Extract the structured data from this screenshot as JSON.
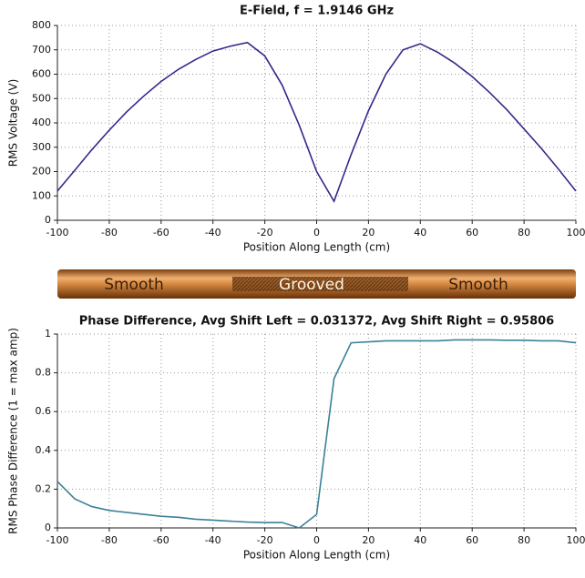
{
  "chart_data": [
    {
      "type": "line",
      "title": "E-Field, f = 1.9146 GHz",
      "xlabel": "Position Along Length (cm)",
      "ylabel": "RMS Voltage (V)",
      "x": [
        -100,
        -93.3,
        -86.7,
        -80,
        -73.3,
        -66.7,
        -60,
        -53.3,
        -46.7,
        -40,
        -33.3,
        -26.7,
        -20,
        -13.3,
        -6.7,
        0,
        6.7,
        13.3,
        20,
        26.7,
        33.3,
        40,
        46.7,
        53.3,
        60,
        66.7,
        73.3,
        80,
        86.7,
        93.3,
        100
      ],
      "series": [
        {
          "color": "#35288a",
          "values": [
            120,
            205,
            290,
            370,
            445,
            510,
            570,
            620,
            660,
            695,
            715,
            730,
            675,
            555,
            390,
            200,
            78,
            270,
            450,
            600,
            700,
            725,
            690,
            645,
            590,
            525,
            455,
            375,
            295,
            210,
            120
          ]
        }
      ],
      "xlim": [
        -100,
        100
      ],
      "xticks": [
        -100,
        -80,
        -60,
        -40,
        -20,
        0,
        20,
        40,
        60,
        80,
        100
      ],
      "ylim": [
        0,
        800
      ],
      "yticks": [
        0,
        100,
        200,
        300,
        400,
        500,
        600,
        700,
        800
      ],
      "grid": true
    },
    {
      "type": "line",
      "title": "Phase Difference, Avg Shift Left = 0.031372, Avg Shift Right = 0.95806",
      "xlabel": "Position Along Length (cm)",
      "ylabel": "RMS Phase Difference (1 = max amp)",
      "x": [
        -100,
        -93.3,
        -86.7,
        -80,
        -73.3,
        -66.7,
        -60,
        -53.3,
        -46.7,
        -40,
        -33.3,
        -26.7,
        -20,
        -13.3,
        -6.7,
        0,
        6.7,
        13.3,
        20,
        26.7,
        33.3,
        40,
        46.7,
        53.3,
        60,
        66.7,
        73.3,
        80,
        86.7,
        93.3,
        100
      ],
      "series": [
        {
          "color": "#3b8099",
          "values": [
            0.24,
            0.15,
            0.11,
            0.09,
            0.08,
            0.07,
            0.06,
            0.055,
            0.045,
            0.04,
            0.035,
            0.03,
            0.028,
            0.028,
            0,
            0.07,
            0.77,
            0.955,
            0.96,
            0.965,
            0.965,
            0.965,
            0.965,
            0.97,
            0.97,
            0.97,
            0.968,
            0.968,
            0.965,
            0.965,
            0.955
          ]
        }
      ],
      "xlim": [
        -100,
        100
      ],
      "xticks": [
        -100,
        -80,
        -60,
        -40,
        -20,
        0,
        20,
        40,
        60,
        80,
        100
      ],
      "ylim": [
        0,
        1
      ],
      "yticks": [
        0,
        0.2,
        0.4,
        0.6,
        0.8,
        1
      ],
      "grid": true
    }
  ],
  "rod": {
    "labels": [
      "Smooth",
      "Grooved",
      "Smooth"
    ]
  }
}
